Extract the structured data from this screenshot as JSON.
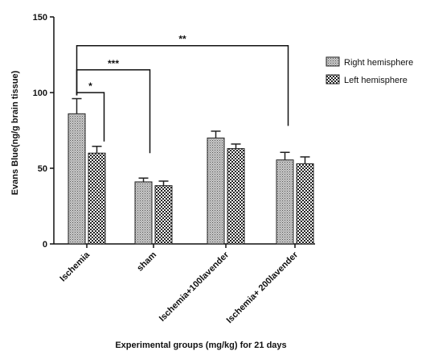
{
  "chart_data": {
    "type": "bar",
    "xlabel": "Experimental groups (mg/kg) for 21 days",
    "ylabel": "Evans Blue(ng/g brain tissue)",
    "ylim": [
      0,
      150
    ],
    "yticks": [
      "0",
      "50",
      "100",
      "150"
    ],
    "categories": [
      "Ischemia",
      "sham",
      "Ischemia+100lavender",
      "Ischemia+ 200lavender"
    ],
    "series": [
      {
        "name": "Right hemisphere",
        "values": [
          86,
          41,
          70,
          55.5
        ],
        "errors": [
          10,
          2.5,
          4.5,
          5
        ],
        "pattern": "dots"
      },
      {
        "name": "Left hemisphere",
        "values": [
          60,
          38.5,
          63,
          53
        ],
        "errors": [
          4.5,
          3,
          3,
          4.5
        ],
        "pattern": "checker"
      }
    ],
    "legend_position": "top-right",
    "significance": [
      {
        "label": "*",
        "from": "Ischemia (Right hemisphere)",
        "to": "Ischemia (Left hemisphere)"
      },
      {
        "label": "***",
        "from": "Ischemia",
        "to": "sham"
      },
      {
        "label": "**",
        "from": "Ischemia",
        "to": "Ischemia+ 200lavender"
      }
    ]
  }
}
